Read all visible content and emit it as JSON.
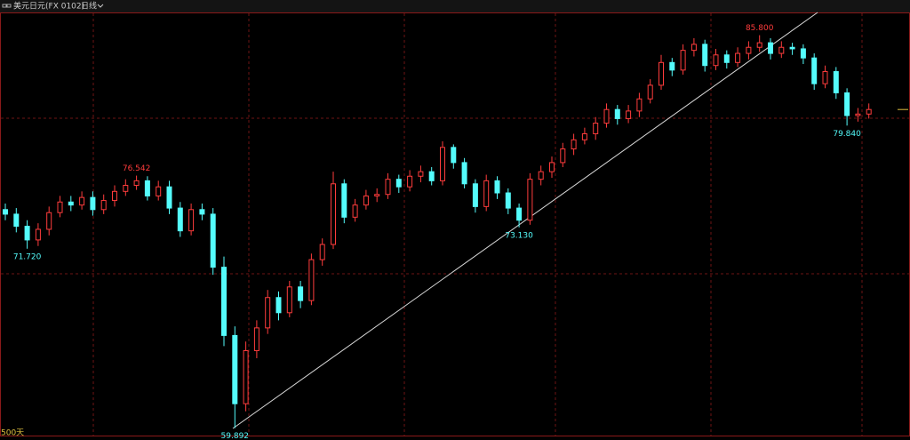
{
  "chart_data": {
    "type": "candlestick",
    "title": "美元日元(FX 0102)",
    "period": "日线",
    "range_label": "500天",
    "up_color": "#ff3c3c",
    "down_color": "#54fcfc",
    "ylim": [
      59.4,
      87.3
    ],
    "open": [
      74.3,
      74.0,
      73.2,
      72.3,
      73.0,
      74.1,
      74.8,
      74.6,
      75.1,
      74.3,
      74.9,
      75.5,
      75.9,
      76.2,
      75.2,
      75.8,
      74.4,
      72.9,
      74.3,
      74.0,
      70.5,
      66.0,
      61.5,
      65.0,
      66.5,
      68.5,
      67.5,
      69.2,
      68.3,
      71.0,
      72.0,
      76.0,
      73.8,
      74.6,
      75.2,
      75.3,
      76.3,
      75.8,
      76.5,
      76.8,
      76.2,
      78.4,
      77.4,
      76.0,
      74.5,
      76.2,
      75.4,
      74.4,
      73.6,
      76.3,
      76.8,
      77.4,
      78.3,
      78.9,
      79.3,
      80.0,
      80.9,
      80.3,
      80.8,
      81.6,
      82.5,
      84.0,
      83.5,
      84.8,
      85.2,
      83.8,
      84.5,
      84.0,
      84.6,
      85.0,
      85.3,
      84.6,
      85.0,
      84.9,
      84.3,
      82.6,
      83.4,
      82.0,
      80.5,
      80.6
    ],
    "high": [
      74.7,
      74.4,
      73.6,
      73.4,
      74.5,
      75.2,
      75.2,
      75.5,
      75.5,
      75.3,
      75.9,
      76.3,
      76.542,
      76.5,
      76.2,
      76.2,
      74.8,
      74.7,
      74.7,
      74.4,
      71.2,
      66.6,
      65.6,
      67.0,
      69.0,
      68.9,
      69.6,
      69.6,
      71.4,
      72.4,
      76.8,
      76.3,
      75.0,
      75.6,
      75.7,
      76.7,
      76.6,
      76.9,
      77.2,
      77.1,
      78.8,
      78.6,
      77.7,
      76.3,
      76.6,
      76.5,
      75.7,
      74.7,
      76.7,
      77.2,
      77.8,
      78.7,
      79.3,
      79.7,
      80.4,
      81.3,
      81.2,
      81.2,
      82.0,
      82.9,
      84.5,
      84.3,
      85.2,
      85.6,
      85.5,
      84.9,
      84.8,
      85.0,
      85.4,
      85.8,
      85.6,
      85.4,
      85.3,
      85.2,
      84.6,
      83.8,
      83.7,
      82.3,
      81.0,
      81.3
    ],
    "low": [
      73.6,
      72.8,
      71.72,
      71.9,
      72.6,
      73.8,
      74.2,
      74.3,
      73.9,
      74.0,
      74.5,
      75.2,
      75.6,
      74.9,
      74.9,
      74.0,
      72.5,
      72.6,
      73.6,
      70.0,
      65.3,
      59.892,
      61.0,
      64.5,
      66.1,
      67.0,
      67.2,
      67.8,
      68.0,
      70.6,
      71.7,
      73.4,
      73.5,
      74.3,
      74.8,
      75.0,
      75.4,
      75.5,
      76.1,
      75.9,
      75.9,
      77.0,
      75.7,
      74.1,
      74.2,
      75.0,
      74.0,
      73.13,
      73.3,
      75.9,
      76.4,
      77.1,
      77.9,
      78.6,
      78.9,
      79.7,
      79.9,
      80.0,
      80.4,
      81.3,
      82.2,
      83.1,
      83.2,
      84.4,
      83.4,
      83.5,
      83.6,
      83.7,
      84.2,
      84.7,
      84.2,
      84.3,
      84.5,
      83.9,
      82.2,
      82.3,
      81.6,
      79.84,
      80.1,
      80.3
    ],
    "close": [
      74.0,
      73.2,
      72.3,
      73.0,
      74.1,
      74.8,
      74.6,
      75.1,
      74.3,
      74.9,
      75.5,
      75.9,
      76.2,
      75.2,
      75.8,
      74.4,
      72.9,
      74.3,
      74.0,
      70.5,
      66.0,
      61.5,
      65.0,
      66.5,
      68.5,
      67.5,
      69.2,
      68.3,
      71.0,
      72.0,
      76.0,
      73.8,
      74.6,
      75.2,
      75.3,
      76.3,
      75.8,
      76.5,
      76.8,
      76.2,
      78.4,
      77.4,
      76.0,
      74.5,
      76.2,
      75.4,
      74.4,
      73.6,
      76.3,
      76.8,
      77.4,
      78.3,
      78.9,
      79.3,
      80.0,
      80.9,
      80.3,
      80.8,
      81.6,
      82.5,
      84.0,
      83.5,
      84.8,
      85.2,
      83.8,
      84.5,
      84.0,
      84.6,
      85.0,
      85.3,
      84.6,
      85.0,
      84.9,
      84.3,
      82.6,
      83.4,
      82.0,
      80.5,
      80.6,
      80.9
    ],
    "annotations": [
      {
        "value": 71.72,
        "label": "71.720"
      },
      {
        "value": 76.542,
        "label": "76.542"
      },
      {
        "value": 59.892,
        "label": "59.892"
      },
      {
        "value": 73.13,
        "label": "73.130"
      },
      {
        "value": 85.8,
        "label": "85.800"
      },
      {
        "value": 79.84,
        "label": "79.840"
      }
    ]
  }
}
